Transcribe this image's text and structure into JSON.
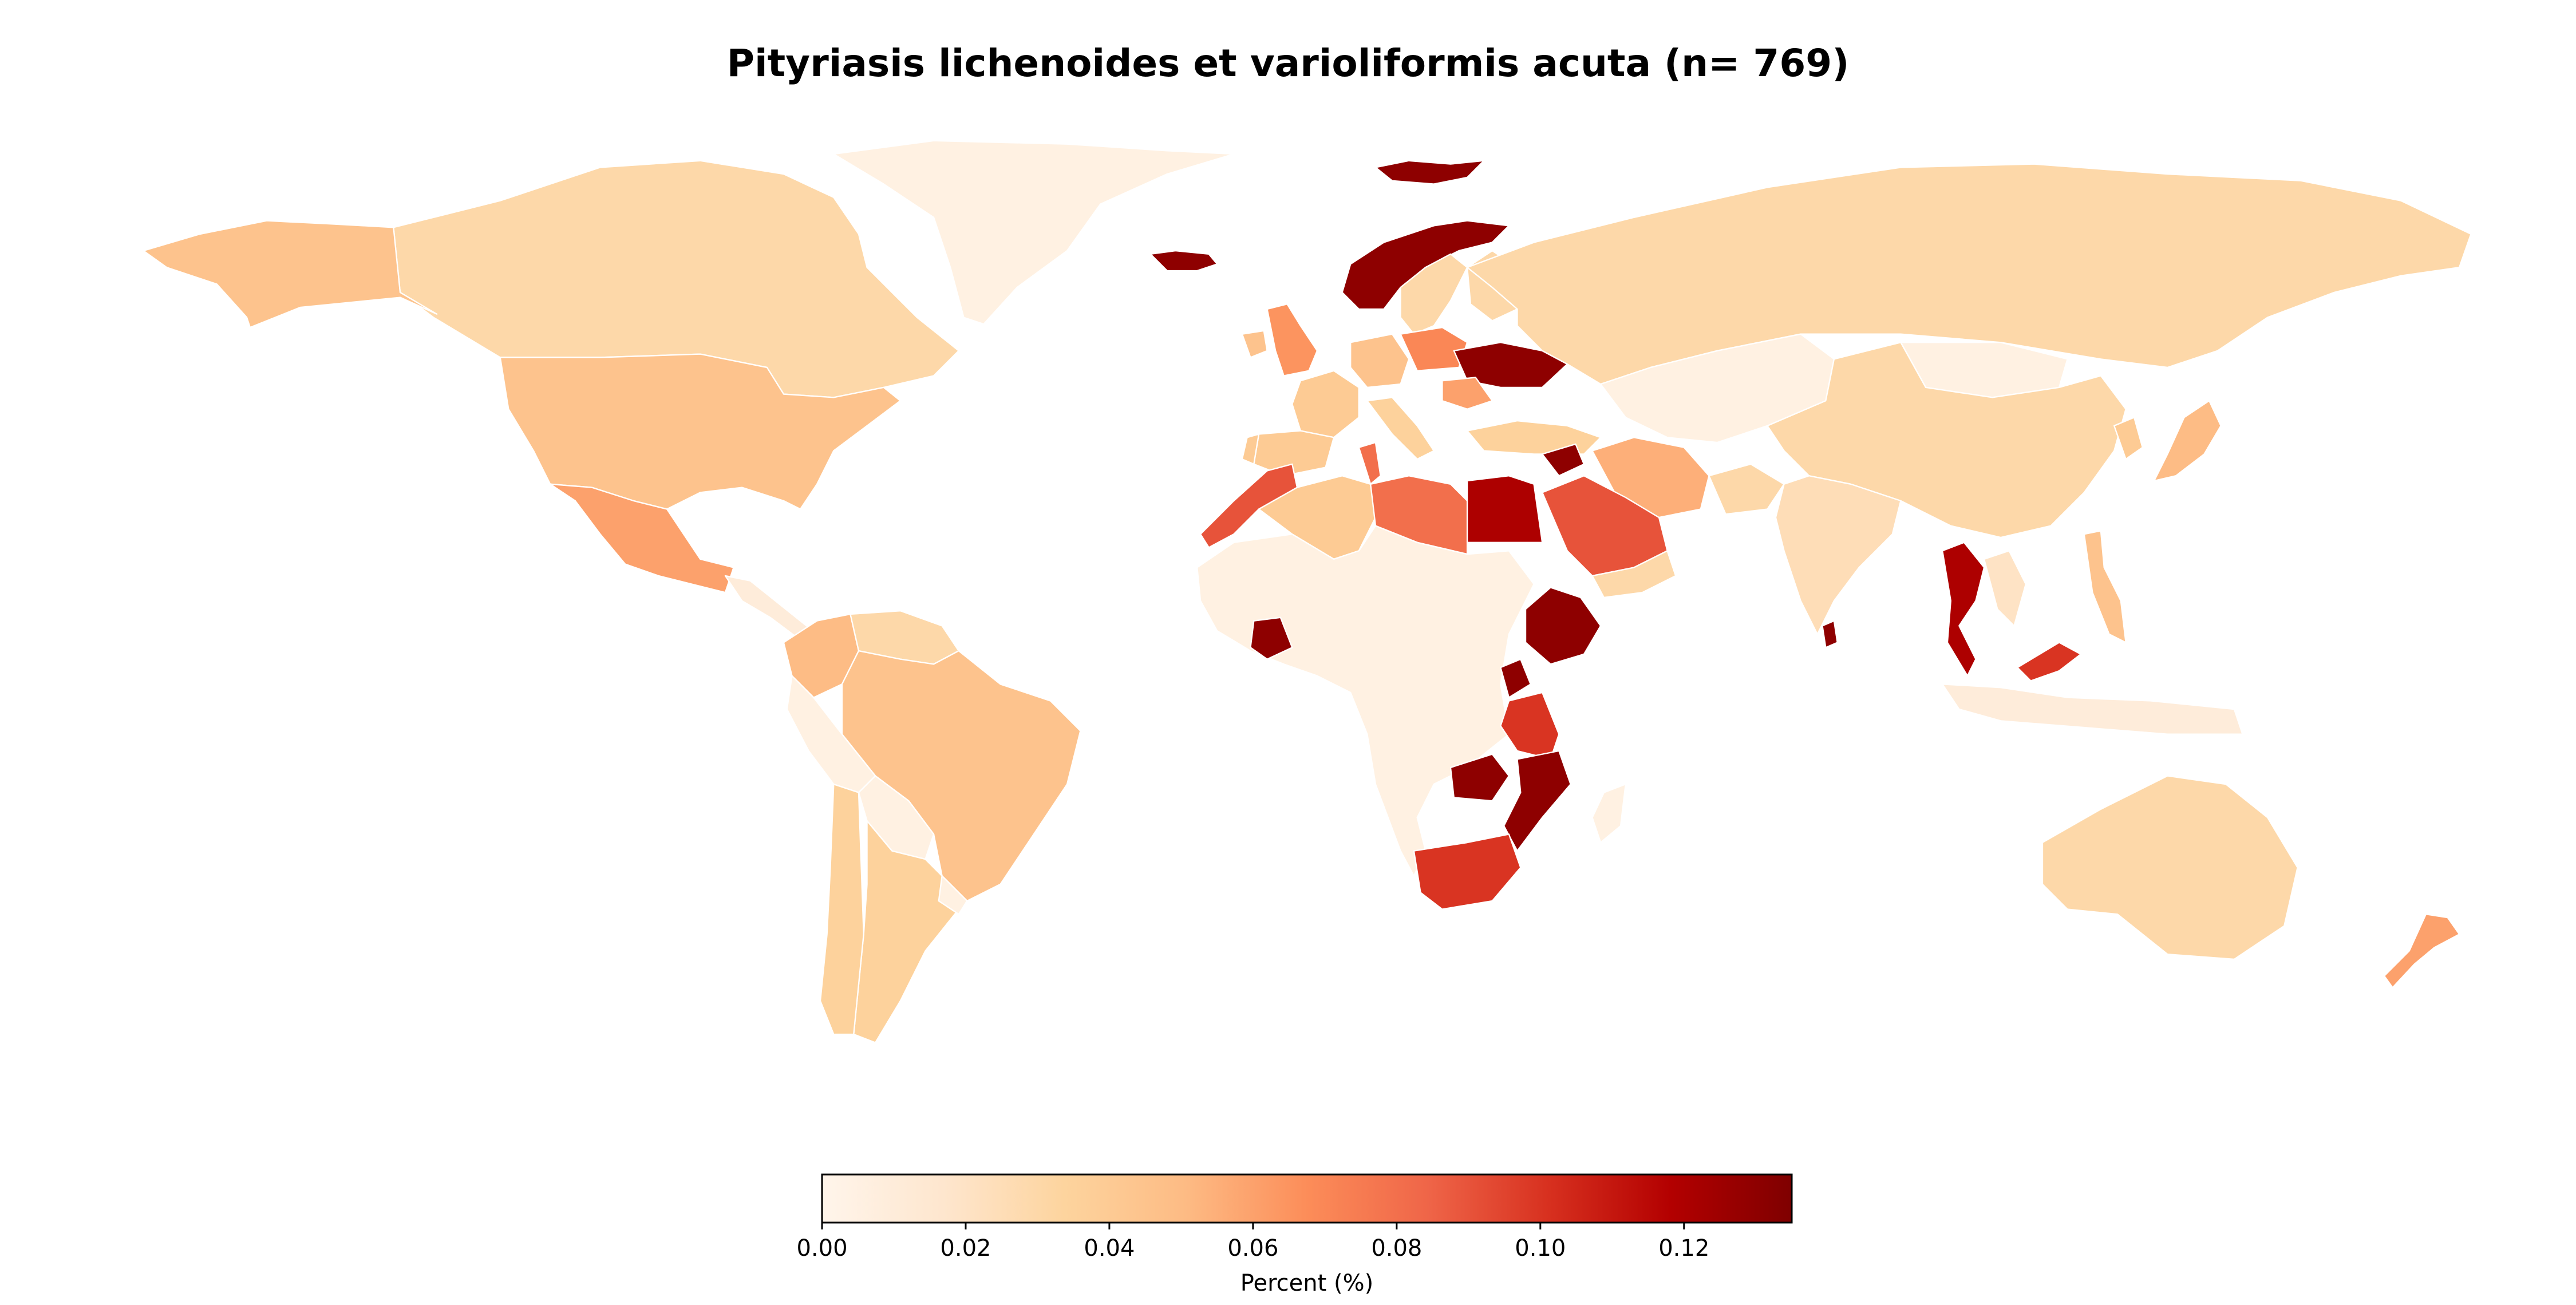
{
  "title": "Pityriasis lichenoides et varioliformis acuta (n= 769)",
  "colorbar": {
    "label": "Percent (%)",
    "range": [
      0,
      0.135
    ],
    "ticks": [
      "0.00",
      "0.02",
      "0.04",
      "0.06",
      "0.08",
      "0.10",
      "0.12"
    ],
    "tick_values": [
      0,
      0.02,
      0.04,
      0.06,
      0.08,
      0.1,
      0.12
    ],
    "colormap": [
      "#fff5eb",
      "#fee6ce",
      "#fdd49e",
      "#fdbb84",
      "#fc8d59",
      "#ef6548",
      "#d7301f",
      "#b30000",
      "#7f0000"
    ]
  },
  "chart_data": {
    "type": "choropleth",
    "title": "Pityriasis lichenoides et varioliformis acuta (n= 769)",
    "value_label": "Percent (%)",
    "vmin": 0,
    "vmax": 0.135,
    "regions": [
      {
        "name": "Greenland",
        "value": 0.005
      },
      {
        "name": "Canada",
        "value": 0.03
      },
      {
        "name": "Alaska (USA)",
        "value": 0.045
      },
      {
        "name": "United States",
        "value": 0.045
      },
      {
        "name": "Mexico",
        "value": 0.06
      },
      {
        "name": "Central America",
        "value": 0.01
      },
      {
        "name": "Colombia",
        "value": 0.05
      },
      {
        "name": "Venezuela",
        "value": 0.03
      },
      {
        "name": "Brazil",
        "value": 0.045
      },
      {
        "name": "Peru",
        "value": 0.005
      },
      {
        "name": "Bolivia",
        "value": 0.005
      },
      {
        "name": "Argentina",
        "value": 0.035
      },
      {
        "name": "Chile",
        "value": 0.035
      },
      {
        "name": "Uruguay",
        "value": 0.005
      },
      {
        "name": "Iceland",
        "value": 0.13
      },
      {
        "name": "Svalbard",
        "value": 0.13
      },
      {
        "name": "Norway",
        "value": 0.13
      },
      {
        "name": "Sweden",
        "value": 0.03
      },
      {
        "name": "Finland",
        "value": 0.03
      },
      {
        "name": "United Kingdom",
        "value": 0.065
      },
      {
        "name": "Ireland",
        "value": 0.045
      },
      {
        "name": "France",
        "value": 0.04
      },
      {
        "name": "Spain",
        "value": 0.04
      },
      {
        "name": "Portugal",
        "value": 0.04
      },
      {
        "name": "Germany",
        "value": 0.045
      },
      {
        "name": "Poland",
        "value": 0.07
      },
      {
        "name": "Ukraine",
        "value": 0.13
      },
      {
        "name": "Italy",
        "value": 0.035
      },
      {
        "name": "Romania",
        "value": 0.06
      },
      {
        "name": "Turkey",
        "value": 0.035
      },
      {
        "name": "Syria",
        "value": 0.13
      },
      {
        "name": "Russia",
        "value": 0.03
      },
      {
        "name": "Kazakhstan",
        "value": 0.005
      },
      {
        "name": "Mongolia",
        "value": 0.005
      },
      {
        "name": "China",
        "value": 0.03
      },
      {
        "name": "Japan",
        "value": 0.05
      },
      {
        "name": "Korea",
        "value": 0.04
      },
      {
        "name": "Iran",
        "value": 0.055
      },
      {
        "name": "Saudi Arabia",
        "value": 0.09
      },
      {
        "name": "Yemen",
        "value": 0.03
      },
      {
        "name": "Afghanistan",
        "value": 0.03
      },
      {
        "name": "India",
        "value": 0.025
      },
      {
        "name": "Sri Lanka",
        "value": 0.13
      },
      {
        "name": "Thailand",
        "value": 0.12
      },
      {
        "name": "Malaysia",
        "value": 0.1
      },
      {
        "name": "Philippines",
        "value": 0.045
      },
      {
        "name": "Vietnam",
        "value": 0.02
      },
      {
        "name": "Indonesia",
        "value": 0.01
      },
      {
        "name": "Morocco",
        "value": 0.09
      },
      {
        "name": "Algeria",
        "value": 0.04
      },
      {
        "name": "Tunisia",
        "value": 0.08
      },
      {
        "name": "Libya",
        "value": 0.08
      },
      {
        "name": "Egypt",
        "value": 0.12
      },
      {
        "name": "West & Central Africa",
        "value": 0.005
      },
      {
        "name": "Côte d'Ivoire",
        "value": 0.13
      },
      {
        "name": "Ethiopia",
        "value": 0.13
      },
      {
        "name": "Uganda",
        "value": 0.13
      },
      {
        "name": "Tanzania",
        "value": 0.1
      },
      {
        "name": "Zambia",
        "value": 0.13
      },
      {
        "name": "Mozambique",
        "value": 0.13
      },
      {
        "name": "South Africa",
        "value": 0.1
      },
      {
        "name": "Madagascar",
        "value": 0.005
      },
      {
        "name": "Australia",
        "value": 0.03
      },
      {
        "name": "New Zealand",
        "value": 0.06
      }
    ]
  }
}
